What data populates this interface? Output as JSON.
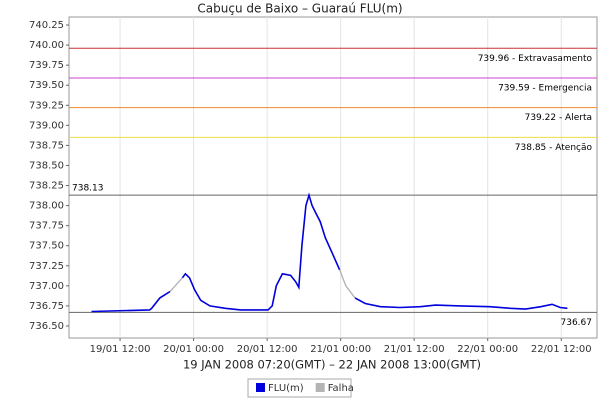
{
  "chart_data": {
    "type": "line",
    "title": "Cabuçu de Baixo – Guaraú FLU(m)",
    "x_label": "19 JAN 2008 07:20(GMT) – 22 JAN 2008 13:00(GMT)",
    "x": [
      "19/01 07:20",
      "19/01 16:50",
      "19/01 17:10",
      "19/01 18:30",
      "19/01 20:10",
      "19/01 21:00",
      "19/01 22:10",
      "19/01 22:40",
      "19/01 23:20",
      "20/01 00:10",
      "20/01 01:10",
      "20/01 02:40",
      "20/01 05:10",
      "20/01 07:40",
      "20/01 12:10",
      "20/01 12:50",
      "20/01 13:30",
      "20/01 14:30",
      "20/01 15:50",
      "20/01 16:40",
      "20/01 17:10",
      "20/01 17:40",
      "20/01 18:20",
      "20/01 18:50",
      "20/01 19:20",
      "20/01 20:00",
      "20/01 20:40",
      "20/01 21:30",
      "20/01 22:40",
      "20/01 23:50",
      "21/01 00:50",
      "21/01 02:20",
      "21/01 04:00",
      "21/01 06:30",
      "21/01 09:40",
      "21/01 13:00",
      "21/01 15:30",
      "21/01 19:30",
      "22/01 00:20",
      "22/01 03:40",
      "22/01 06:10",
      "22/01 08:40",
      "22/01 10:30",
      "22/01 11:50",
      "22/01 13:00"
    ],
    "series": [
      {
        "name": "FLU(m)",
        "color": "#0000dd",
        "values": [
          736.68,
          736.7,
          736.72,
          736.85,
          736.93,
          null,
          737.1,
          737.15,
          737.1,
          736.95,
          736.82,
          736.75,
          736.72,
          736.7,
          736.7,
          736.75,
          737.0,
          737.15,
          737.13,
          737.05,
          736.98,
          737.5,
          738.0,
          738.13,
          738.0,
          737.9,
          737.8,
          737.6,
          737.4,
          737.2,
          null,
          736.85,
          736.78,
          736.74,
          736.73,
          736.74,
          736.76,
          736.75,
          736.74,
          736.72,
          736.71,
          736.74,
          736.77,
          736.73,
          736.72
        ]
      },
      {
        "name": "Falha",
        "color": "#b4b4b4",
        "values": [
          null,
          null,
          null,
          null,
          736.93,
          737.0,
          737.1,
          null,
          null,
          null,
          null,
          null,
          null,
          null,
          null,
          null,
          null,
          null,
          null,
          null,
          null,
          null,
          null,
          null,
          null,
          null,
          null,
          null,
          null,
          737.2,
          737.0,
          736.85,
          null,
          null,
          null,
          null,
          null,
          null,
          null,
          null,
          null,
          null,
          null,
          null,
          null
        ]
      }
    ],
    "xlim": [
      "19/01 03:40",
      "22/01 17:50"
    ],
    "xticks": [
      "19/01 12:00",
      "20/01 00:00",
      "20/01 12:00",
      "21/01 00:00",
      "21/01 12:00",
      "22/01 00:00",
      "22/01 12:00"
    ],
    "ylim": [
      736.35,
      740.35
    ],
    "yticks": [
      {
        "value": 736.5,
        "label": "736.50"
      },
      736.75,
      {
        "value": 737,
        "label": "737.00"
      },
      737.25,
      {
        "value": 737.5,
        "label": "737.50"
      },
      737.75,
      {
        "value": 738,
        "label": "738.00"
      },
      738.25,
      {
        "value": 738.5,
        "label": "738.50"
      },
      738.75,
      {
        "value": 739,
        "label": "739.00"
      },
      739.25,
      {
        "value": 739.5,
        "label": "739.50"
      },
      739.75,
      {
        "value": 740,
        "label": "740.00"
      },
      740.25
    ],
    "grid": true,
    "markers": [
      {
        "value": 739.96,
        "label": "739.96 - Extravasamento",
        "color": "#cc3333",
        "label_anchor": "end"
      },
      {
        "value": 739.59,
        "label": "739.59 - Emergencia",
        "color": "#cc44cc",
        "label_anchor": "end"
      },
      {
        "value": 739.22,
        "label": "739.22 - Alerta",
        "color": "#ee8833",
        "label_anchor": "end"
      },
      {
        "value": 738.85,
        "label": "738.85 - Atenção",
        "color": "#eedd44",
        "label_anchor": "end"
      },
      {
        "value": 738.13,
        "label": "738.13",
        "color": "#666666",
        "label_anchor": "start"
      },
      {
        "value": 736.67,
        "label": "736.67",
        "color": "#666666",
        "label_anchor": "end"
      }
    ]
  }
}
